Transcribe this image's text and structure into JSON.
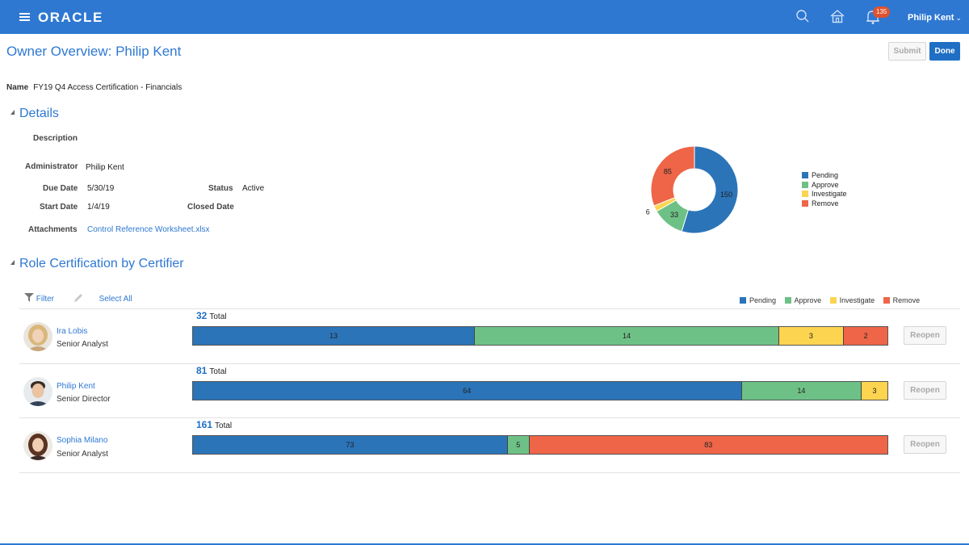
{
  "header": {
    "brand": "ORACLE",
    "notification_count": "135",
    "user_name": "Philip Kent",
    "icons": [
      "menu-icon",
      "search-icon",
      "home-icon",
      "bell-icon",
      "chevron-down-icon"
    ]
  },
  "page": {
    "title": "Owner Overview: Philip Kent",
    "submit_label": "Submit",
    "done_label": "Done",
    "name_label": "Name",
    "name_value": "FY19 Q4 Access Certification - Financials"
  },
  "details": {
    "heading": "Details",
    "description_label": "Description",
    "administrator_label": "Administrator",
    "administrator_value": "Philip Kent",
    "due_date_label": "Due Date",
    "due_date_value": "5/30/19",
    "status_label": "Status",
    "status_value": "Active",
    "start_date_label": "Start Date",
    "start_date_value": "1/4/19",
    "closed_date_label": "Closed Date",
    "attachments_label": "Attachments",
    "attachment_link": "Control Reference Worksheet.xlsx"
  },
  "colors": {
    "pending": "#2b74b8",
    "approve": "#6ec186",
    "investigate": "#fcd44f",
    "remove": "#ee6548",
    "accent": "#2e78d2"
  },
  "chart_data": [
    {
      "type": "pie",
      "categories": [
        "Pending",
        "Approve",
        "Investigate",
        "Remove"
      ],
      "values": [
        150,
        33,
        6,
        85
      ],
      "legend": "right"
    },
    {
      "type": "bar",
      "orientation": "horizontal-stacked",
      "categories": [
        "Ira Lobis",
        "Philip Kent",
        "Sophia Milano"
      ],
      "series": [
        {
          "name": "Pending",
          "values": [
            13,
            64,
            73
          ]
        },
        {
          "name": "Approve",
          "values": [
            14,
            14,
            5
          ]
        },
        {
          "name": "Investigate",
          "values": [
            3,
            3,
            0
          ]
        },
        {
          "name": "Remove",
          "values": [
            2,
            0,
            83
          ]
        }
      ],
      "legend": "top-right"
    }
  ],
  "certification": {
    "heading": "Role Certification by Certifier",
    "filter_label": "Filter",
    "select_all_label": "Select All",
    "legend": [
      "Pending",
      "Approve",
      "Investigate",
      "Remove"
    ],
    "total_label": "Total",
    "reopen_label": "Reopen",
    "rows": [
      {
        "name": "Ira Lobis",
        "title": "Senior Analyst",
        "total": "32"
      },
      {
        "name": "Philip Kent",
        "title": "Senior Director",
        "total": "81"
      },
      {
        "name": "Sophia Milano",
        "title": "Senior Analyst",
        "total": "161"
      }
    ]
  }
}
